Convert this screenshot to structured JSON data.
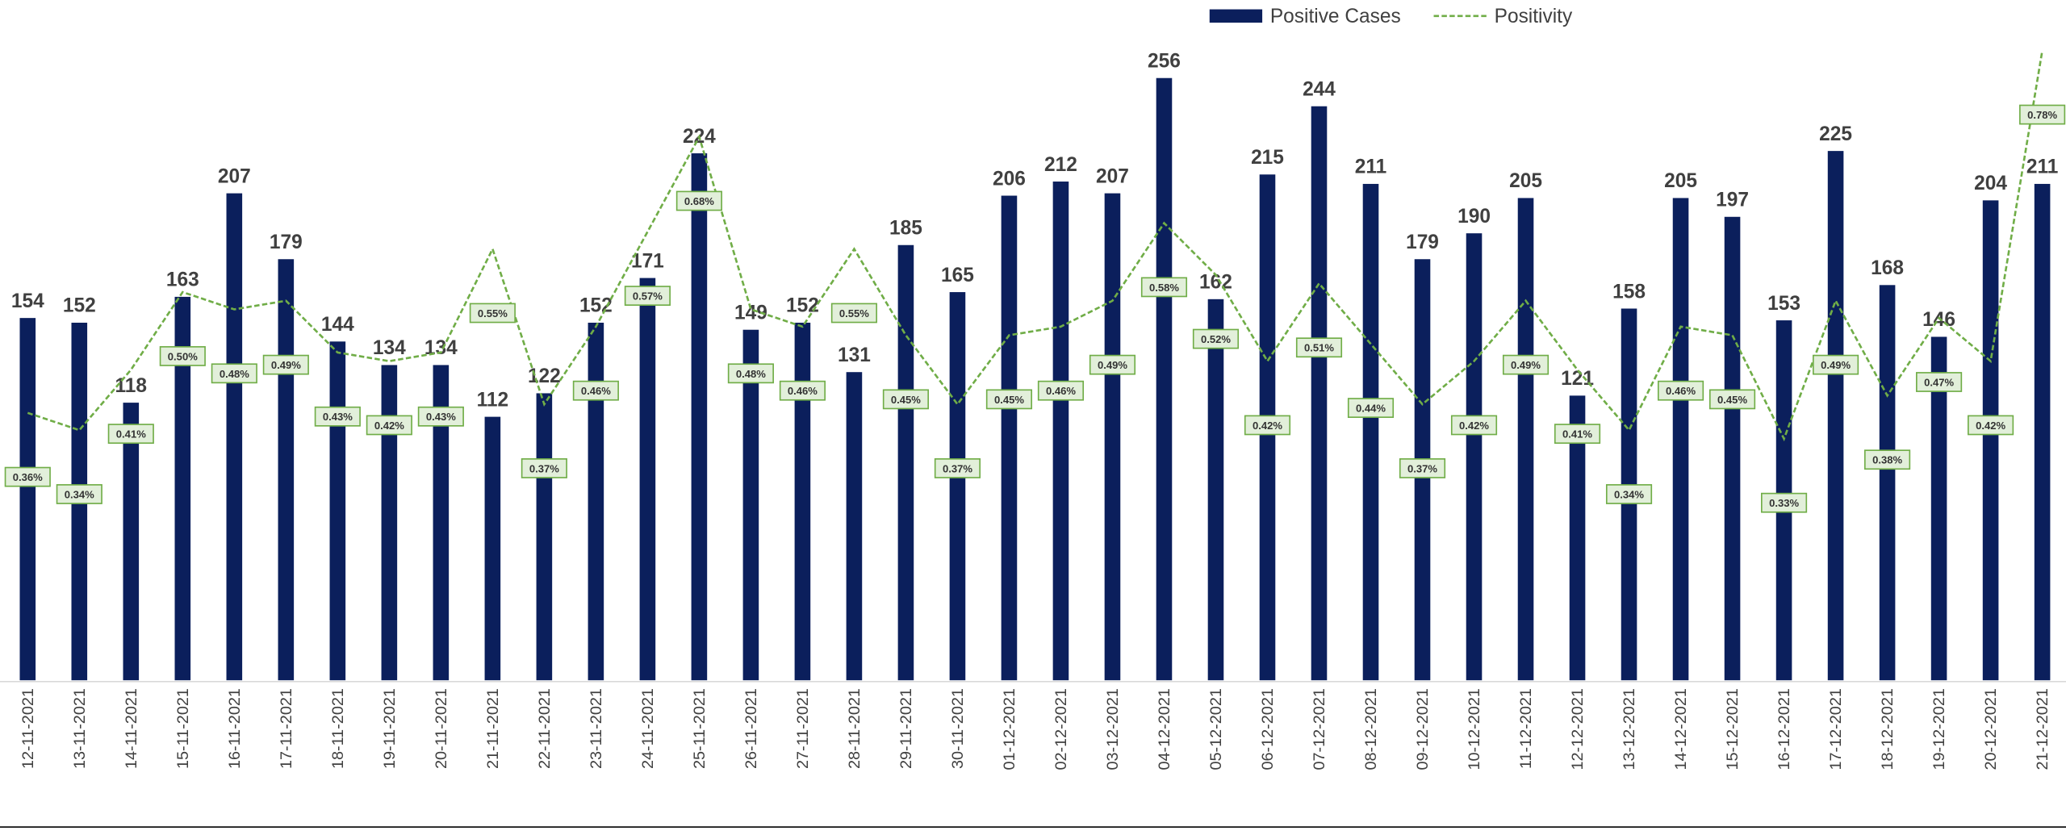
{
  "chart_data": {
    "type": "bar_line",
    "categories": [
      "12-11-2021",
      "13-11-2021",
      "14-11-2021",
      "15-11-2021",
      "16-11-2021",
      "17-11-2021",
      "18-11-2021",
      "19-11-2021",
      "20-11-2021",
      "21-11-2021",
      "22-11-2021",
      "23-11-2021",
      "24-11-2021",
      "25-11-2021",
      "26-11-2021",
      "27-11-2021",
      "28-11-2021",
      "29-11-2021",
      "30-11-2021",
      "01-12-2021",
      "02-12-2021",
      "03-12-2021",
      "04-12-2021",
      "05-12-2021",
      "06-12-2021",
      "07-12-2021",
      "08-12-2021",
      "09-12-2021",
      "10-12-2021",
      "11-12-2021",
      "12-12-2021",
      "13-12-2021",
      "14-12-2021",
      "15-12-2021",
      "16-12-2021",
      "17-12-2021",
      "18-12-2021",
      "19-12-2021",
      "20-12-2021",
      "21-12-2021"
    ],
    "series": [
      {
        "name": "Positive Cases",
        "color": "#0b1f5c",
        "type": "bar",
        "values": [
          154,
          152,
          118,
          163,
          207,
          179,
          144,
          134,
          134,
          112,
          122,
          152,
          171,
          224,
          149,
          152,
          131,
          185,
          165,
          206,
          212,
          207,
          256,
          162,
          215,
          244,
          211,
          179,
          190,
          205,
          121,
          158,
          205,
          197,
          153,
          225,
          168,
          146,
          204,
          211
        ]
      },
      {
        "name": "Positivity",
        "color": "#70ad47",
        "type": "line",
        "axis": "y2",
        "dashed": true,
        "values": [
          0.36,
          0.34,
          0.41,
          0.5,
          0.48,
          0.49,
          0.43,
          0.42,
          0.43,
          0.55,
          0.37,
          0.46,
          0.57,
          0.68,
          0.48,
          0.46,
          0.55,
          0.45,
          0.37,
          0.45,
          0.46,
          0.49,
          0.58,
          0.52,
          0.42,
          0.51,
          0.44,
          0.37,
          0.42,
          0.49,
          0.41,
          0.34,
          0.46,
          0.45,
          0.33,
          0.49,
          0.38,
          0.47,
          0.42,
          0.78
        ],
        "value_labels": [
          "0.36%",
          "0.34%",
          "0.41%",
          "0.50%",
          "0.48%",
          "0.49%",
          "0.43%",
          "0.42%",
          "0.43%",
          "0.55%",
          "0.37%",
          "0.46%",
          "0.57%",
          "0.68%",
          "0.48%",
          "0.46%",
          "0.55%",
          "0.45%",
          "0.37%",
          "0.45%",
          "0.46%",
          "0.49%",
          "0.58%",
          "0.52%",
          "0.42%",
          "0.51%",
          "0.44%",
          "0.37%",
          "0.42%",
          "0.49%",
          "0.41%",
          "0.34%",
          "0.46%",
          "0.45%",
          "0.33%",
          "0.49%",
          "0.38%",
          "0.47%",
          "0.42%",
          "0.78%"
        ]
      }
    ],
    "ylim": [
      0,
      275
    ],
    "y2lim": [
      0.05,
      0.8
    ],
    "legend": "top"
  }
}
